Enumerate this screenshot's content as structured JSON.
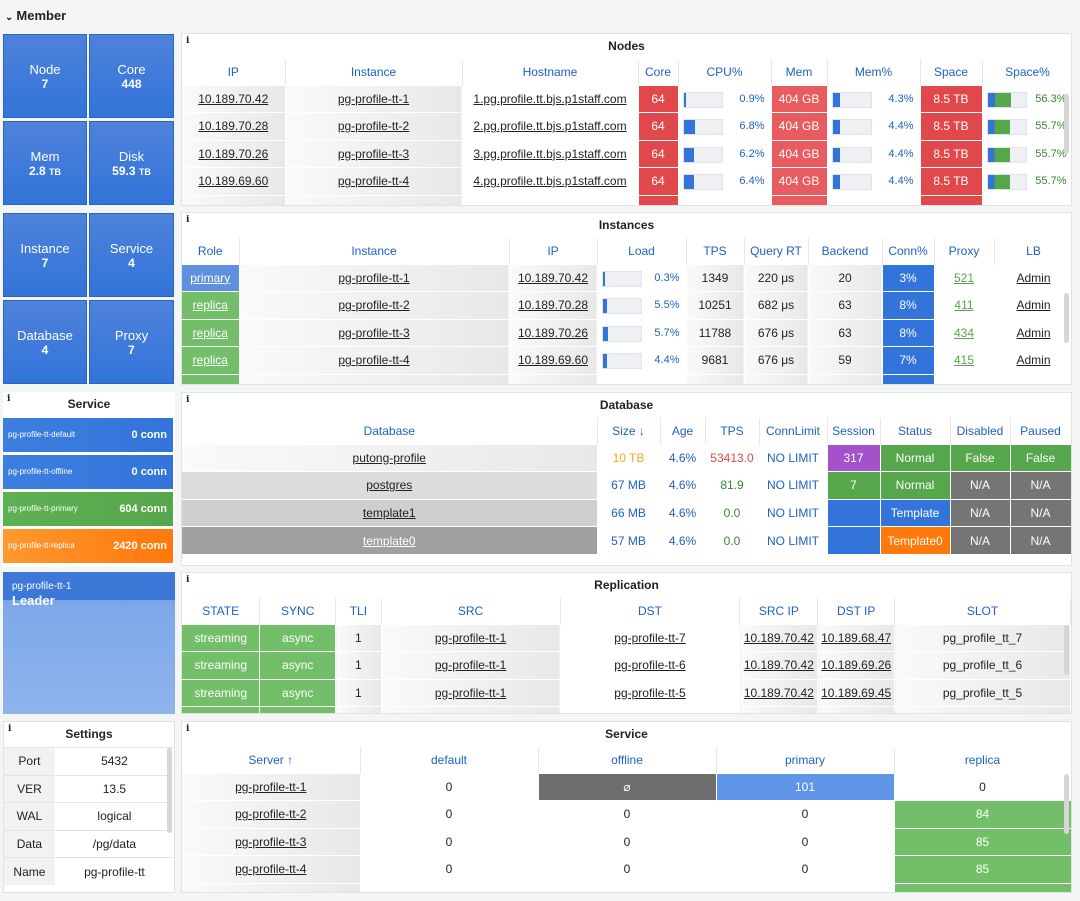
{
  "row_title": "Member",
  "stats": {
    "node": {
      "label": "Node",
      "value": "7"
    },
    "core": {
      "label": "Core",
      "value": "448"
    },
    "mem": {
      "label": "Mem",
      "value": "2.8",
      "unit": "TB"
    },
    "disk": {
      "label": "Disk",
      "value": "59.3",
      "unit": "TB"
    },
    "instance": {
      "label": "Instance",
      "value": "7"
    },
    "service": {
      "label": "Service",
      "value": "4"
    },
    "database": {
      "label": "Database",
      "value": "4"
    },
    "proxy": {
      "label": "Proxy",
      "value": "7"
    }
  },
  "nodes": {
    "title": "Nodes",
    "headers": [
      "IP",
      "Instance",
      "Hostname",
      "Core",
      "CPU%",
      "Mem",
      "Mem%",
      "Space",
      "Space%"
    ],
    "rows": [
      {
        "ip": "10.189.70.42",
        "instance": "pg-profile-tt-1",
        "hostname": "1.pg.profile.tt.bjs.p1staff.com",
        "core": "64",
        "cpu": "0.9%",
        "cpu_v": 0.9,
        "mem": "404 GB",
        "memp": "4.3%",
        "memp_v": 4.3,
        "space": "8.5 TB",
        "spacep": "56.3%",
        "spacep_v": 56.3
      },
      {
        "ip": "10.189.70.28",
        "instance": "pg-profile-tt-2",
        "hostname": "2.pg.profile.tt.bjs.p1staff.com",
        "core": "64",
        "cpu": "6.8%",
        "cpu_v": 6.8,
        "mem": "404 GB",
        "memp": "4.4%",
        "memp_v": 4.4,
        "space": "8.5 TB",
        "spacep": "55.7%",
        "spacep_v": 55.7
      },
      {
        "ip": "10.189.70.26",
        "instance": "pg-profile-tt-3",
        "hostname": "3.pg.profile.tt.bjs.p1staff.com",
        "core": "64",
        "cpu": "6.2%",
        "cpu_v": 6.2,
        "mem": "404 GB",
        "memp": "4.4%",
        "memp_v": 4.4,
        "space": "8.5 TB",
        "spacep": "55.7%",
        "spacep_v": 55.7
      },
      {
        "ip": "10.189.69.60",
        "instance": "pg-profile-tt-4",
        "hostname": "4.pg.profile.tt.bjs.p1staff.com",
        "core": "64",
        "cpu": "6.4%",
        "cpu_v": 6.4,
        "mem": "404 GB",
        "memp": "4.4%",
        "memp_v": 4.4,
        "space": "8.5 TB",
        "spacep": "55.7%",
        "spacep_v": 55.7
      }
    ]
  },
  "instances": {
    "title": "Instances",
    "headers": [
      "Role",
      "Instance",
      "IP",
      "Load",
      "TPS",
      "Query RT",
      "Backend",
      "Conn%",
      "Proxy",
      "LB"
    ],
    "rows": [
      {
        "role": "primary",
        "instance": "pg-profile-tt-1",
        "ip": "10.189.70.42",
        "load": "0.3%",
        "load_v": 0.3,
        "tps": "1349",
        "rt": "220 μs",
        "backend": "20",
        "conn": "3%",
        "proxy": "521",
        "lb": "Admin"
      },
      {
        "role": "replica",
        "instance": "pg-profile-tt-2",
        "ip": "10.189.70.28",
        "load": "5.5%",
        "load_v": 5.5,
        "tps": "10251",
        "rt": "682 μs",
        "backend": "63",
        "conn": "8%",
        "proxy": "411",
        "lb": "Admin"
      },
      {
        "role": "replica",
        "instance": "pg-profile-tt-3",
        "ip": "10.189.70.26",
        "load": "5.7%",
        "load_v": 5.7,
        "tps": "11788",
        "rt": "676 μs",
        "backend": "63",
        "conn": "8%",
        "proxy": "434",
        "lb": "Admin"
      },
      {
        "role": "replica",
        "instance": "pg-profile-tt-4",
        "ip": "10.189.69.60",
        "load": "4.4%",
        "load_v": 4.4,
        "tps": "9681",
        "rt": "676 μs",
        "backend": "59",
        "conn": "7%",
        "proxy": "415",
        "lb": "Admin"
      }
    ]
  },
  "service_panel": {
    "title": "Service",
    "items": [
      {
        "name": "pg-profile-tt-default",
        "conn": "0 conn",
        "color": "#3274d9"
      },
      {
        "name": "pg-profile-tt-offline",
        "conn": "0 conn",
        "color": "#3274d9"
      },
      {
        "name": "pg-profile-tt-primary",
        "conn": "604 conn",
        "color": "#56a64b"
      },
      {
        "name": "pg-profile-tt-replica",
        "conn": "2420 conn",
        "color": "#ff780a"
      }
    ]
  },
  "database": {
    "title": "Database",
    "headers": [
      "Database",
      "Size ↓",
      "Age",
      "TPS",
      "ConnLimit",
      "Session",
      "Status",
      "Disabled",
      "Paused"
    ],
    "rows": [
      {
        "name": "putong-profile",
        "size": "10 TB",
        "age": "4.6%",
        "tps": "53413.0",
        "limit": "NO LIMIT",
        "session": "317",
        "status": "Normal",
        "disabled": "False",
        "paused": "False"
      },
      {
        "name": "postgres",
        "size": "67 MB",
        "age": "4.6%",
        "tps": "81.9",
        "limit": "NO LIMIT",
        "session": "7",
        "status": "Normal",
        "disabled": "N/A",
        "paused": "N/A"
      },
      {
        "name": "template1",
        "size": "66 MB",
        "age": "4.6%",
        "tps": "0.0",
        "limit": "NO LIMIT",
        "session": "",
        "status": "Template",
        "disabled": "N/A",
        "paused": "N/A"
      },
      {
        "name": "template0",
        "size": "57 MB",
        "age": "4.6%",
        "tps": "0.0",
        "limit": "NO LIMIT",
        "session": "",
        "status": "Template0",
        "disabled": "N/A",
        "paused": "N/A"
      }
    ]
  },
  "leader": {
    "name": "pg-profile-tt-1",
    "label": "Leader"
  },
  "replication": {
    "title": "Replication",
    "headers": [
      "STATE",
      "SYNC",
      "TLI",
      "SRC",
      "DST",
      "SRC IP",
      "DST IP",
      "SLOT"
    ],
    "rows": [
      {
        "state": "streaming",
        "sync": "async",
        "tli": "1",
        "src": "pg-profile-tt-1",
        "dst": "pg-profile-tt-7",
        "srcip": "10.189.70.42",
        "dstip": "10.189.68.47",
        "slot": "pg_profile_tt_7"
      },
      {
        "state": "streaming",
        "sync": "async",
        "tli": "1",
        "src": "pg-profile-tt-1",
        "dst": "pg-profile-tt-6",
        "srcip": "10.189.70.42",
        "dstip": "10.189.69.26",
        "slot": "pg_profile_tt_6"
      },
      {
        "state": "streaming",
        "sync": "async",
        "tli": "1",
        "src": "pg-profile-tt-1",
        "dst": "pg-profile-tt-5",
        "srcip": "10.189.70.42",
        "dstip": "10.189.69.45",
        "slot": "pg_profile_tt_5"
      }
    ]
  },
  "settings": {
    "title": "Settings",
    "rows": [
      {
        "k": "Port",
        "v": "5432"
      },
      {
        "k": "VER",
        "v": "13.5"
      },
      {
        "k": "WAL",
        "v": "logical"
      },
      {
        "k": "Data",
        "v": "/pg/data"
      },
      {
        "k": "Name",
        "v": "pg-profile-tt"
      }
    ]
  },
  "service_table": {
    "title": "Service",
    "headers": [
      "Server ↑",
      "default",
      "offline",
      "primary",
      "replica"
    ],
    "rows": [
      {
        "server": "pg-profile-tt-1",
        "default": "0",
        "offline": "⌀",
        "primary": "101",
        "replica": "0"
      },
      {
        "server": "pg-profile-tt-2",
        "default": "0",
        "offline": "0",
        "primary": "0",
        "replica": "84"
      },
      {
        "server": "pg-profile-tt-3",
        "default": "0",
        "offline": "0",
        "primary": "0",
        "replica": "85"
      },
      {
        "server": "pg-profile-tt-4",
        "default": "0",
        "offline": "0",
        "primary": "0",
        "replica": "85"
      }
    ]
  },
  "info_icon": "info-icon"
}
